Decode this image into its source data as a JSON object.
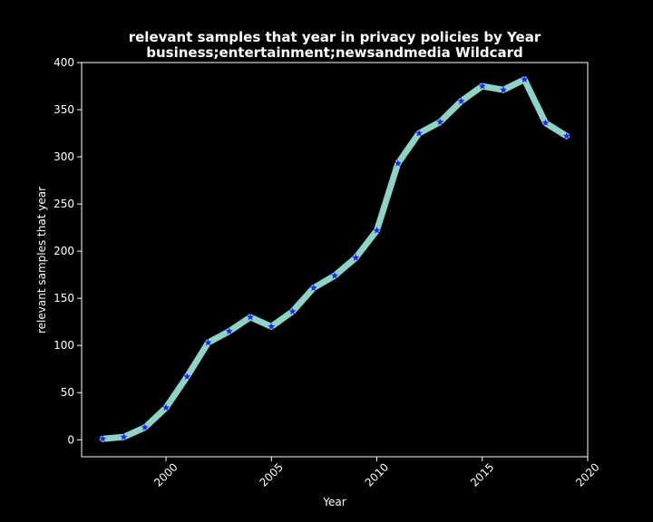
{
  "chart_data": {
    "type": "line",
    "title": "relevant samples that year in privacy policies by Year",
    "subtitle": "business;entertainment;newsandmedia Wildcard",
    "xlabel": "Year",
    "ylabel": "relevant samples that year",
    "xlim": [
      1996,
      2020
    ],
    "ylim": [
      -18,
      400
    ],
    "x_ticks": [
      2000,
      2005,
      2010,
      2015,
      2020
    ],
    "y_ticks": [
      0,
      50,
      100,
      150,
      200,
      250,
      300,
      350,
      400
    ],
    "grid": false,
    "line_color": "#8dd3c7",
    "marker_color": "#1f1fff",
    "marker": "star",
    "series": [
      {
        "x": [
          1997,
          1998,
          1999,
          2000,
          2001,
          2002,
          2003,
          2004,
          2005,
          2006,
          2007,
          2008,
          2009,
          2010,
          2011,
          2012,
          2013,
          2014,
          2015,
          2016,
          2017,
          2018,
          2019
        ],
        "values": [
          1,
          3,
          13,
          34,
          67,
          103,
          115,
          130,
          120,
          136,
          161,
          174,
          193,
          222,
          293,
          325,
          337,
          359,
          375,
          371,
          382,
          336,
          322
        ]
      }
    ]
  }
}
